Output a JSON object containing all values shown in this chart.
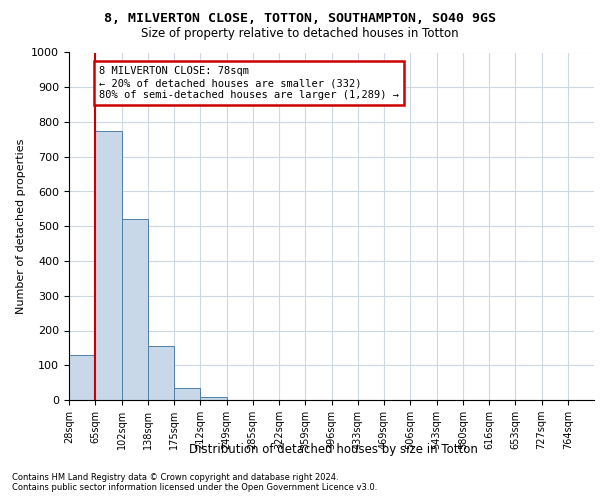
{
  "title_line1": "8, MILVERTON CLOSE, TOTTON, SOUTHAMPTON, SO40 9GS",
  "title_line2": "Size of property relative to detached houses in Totton",
  "xlabel": "Distribution of detached houses by size in Totton",
  "ylabel": "Number of detached properties",
  "bar_values": [
    130,
    775,
    520,
    155,
    35,
    10,
    0,
    0,
    0,
    0,
    0,
    0,
    0,
    0,
    0,
    0,
    0,
    0,
    0,
    0
  ],
  "bin_labels": [
    "28sqm",
    "65sqm",
    "102sqm",
    "138sqm",
    "175sqm",
    "212sqm",
    "249sqm",
    "285sqm",
    "322sqm",
    "359sqm",
    "396sqm",
    "433sqm",
    "469sqm",
    "506sqm",
    "543sqm",
    "580sqm",
    "616sqm",
    "653sqm",
    "727sqm",
    "764sqm"
  ],
  "bar_color": "#c8d8e8",
  "bar_edge_color": "#5080a8",
  "vline_x": 1.0,
  "vline_color": "#cc0000",
  "annotation_text": "8 MILVERTON CLOSE: 78sqm\n← 20% of detached houses are smaller (332)\n80% of semi-detached houses are larger (1,289) →",
  "annotation_box_color": "#ffffff",
  "annotation_box_edge": "#cc0000",
  "ylim": [
    0,
    1000
  ],
  "footer_line1": "Contains HM Land Registry data © Crown copyright and database right 2024.",
  "footer_line2": "Contains public sector information licensed under the Open Government Licence v3.0.",
  "bg_color": "#ffffff",
  "grid_color": "#cdd8e5"
}
